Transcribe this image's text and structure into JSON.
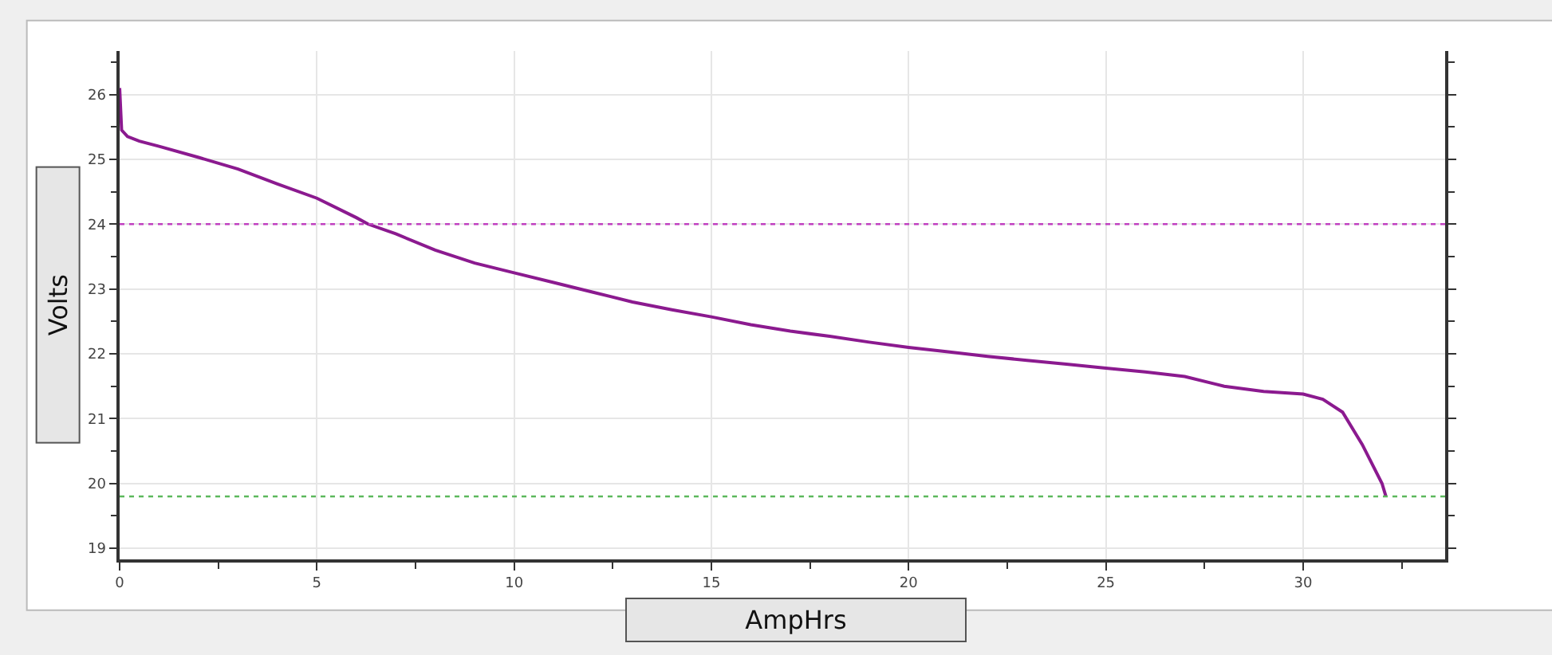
{
  "chart_data": {
    "type": "line",
    "xlabel": "AmpHrs",
    "ylabel": "Volts",
    "xlim": [
      0,
      33.6
    ],
    "xticks": [
      0,
      5,
      10,
      15,
      20,
      25,
      30
    ],
    "ylim": [
      18.83,
      26.67
    ],
    "yticks": [
      19,
      20,
      21,
      22,
      23,
      24,
      25,
      26
    ],
    "grid": true,
    "marker": "none",
    "line_style": "solid",
    "series": [
      {
        "color": "#8b1a8f",
        "x": [
          0,
          0.05,
          0.2,
          0.5,
          1,
          2,
          3,
          4,
          5,
          6,
          6.3,
          7,
          8,
          9,
          10,
          11,
          12,
          13,
          14,
          15,
          16,
          17,
          18,
          19,
          20,
          21,
          22,
          23,
          24,
          25,
          26,
          27,
          28,
          29,
          30,
          30.5,
          31,
          31.5,
          32,
          32.1
        ],
        "values": [
          26.1,
          25.45,
          25.35,
          25.28,
          25.2,
          25.03,
          24.85,
          24.62,
          24.4,
          24.1,
          24.0,
          23.85,
          23.6,
          23.4,
          23.25,
          23.1,
          22.95,
          22.8,
          22.68,
          22.57,
          22.45,
          22.35,
          22.27,
          22.18,
          22.1,
          22.03,
          21.96,
          21.9,
          21.84,
          21.78,
          21.72,
          21.65,
          21.5,
          21.42,
          21.38,
          21.3,
          21.1,
          20.6,
          20.0,
          19.8
        ]
      }
    ],
    "ref_lines": [
      {
        "axis": "y",
        "value": 24.0,
        "color": "#c040c0",
        "line_style": "dotted"
      },
      {
        "axis": "y",
        "value": 19.8,
        "color": "#5cb85c",
        "line_style": "dotted"
      }
    ]
  }
}
